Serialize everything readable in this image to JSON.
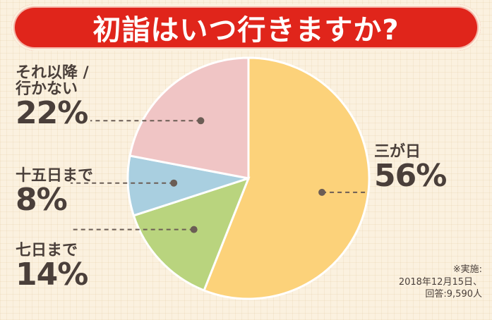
{
  "title": "初詣はいつ行きますか?",
  "chart_data": {
    "type": "pie",
    "title": "初詣はいつ行きますか?",
    "start_angle_deg": 0,
    "direction": "clockwise",
    "slices": [
      {
        "label": "三が日",
        "value": 56,
        "value_label": "56%",
        "color": "#fcd27a"
      },
      {
        "label": "七日まで",
        "value": 14,
        "value_label": "14%",
        "color": "#b9d47e"
      },
      {
        "label": "十五日まで",
        "value": 8,
        "value_label": "8%",
        "color": "#a9cfe0"
      },
      {
        "label": "それ以降 / 行かない",
        "label_lines": [
          "それ以降 /",
          "行かない"
        ],
        "value": 22,
        "value_label": "22%",
        "color": "#f0c5c5"
      }
    ]
  },
  "note": {
    "line1": "※実施:",
    "line2": "2018年12月15日、",
    "line3": "回答:9,590人"
  }
}
